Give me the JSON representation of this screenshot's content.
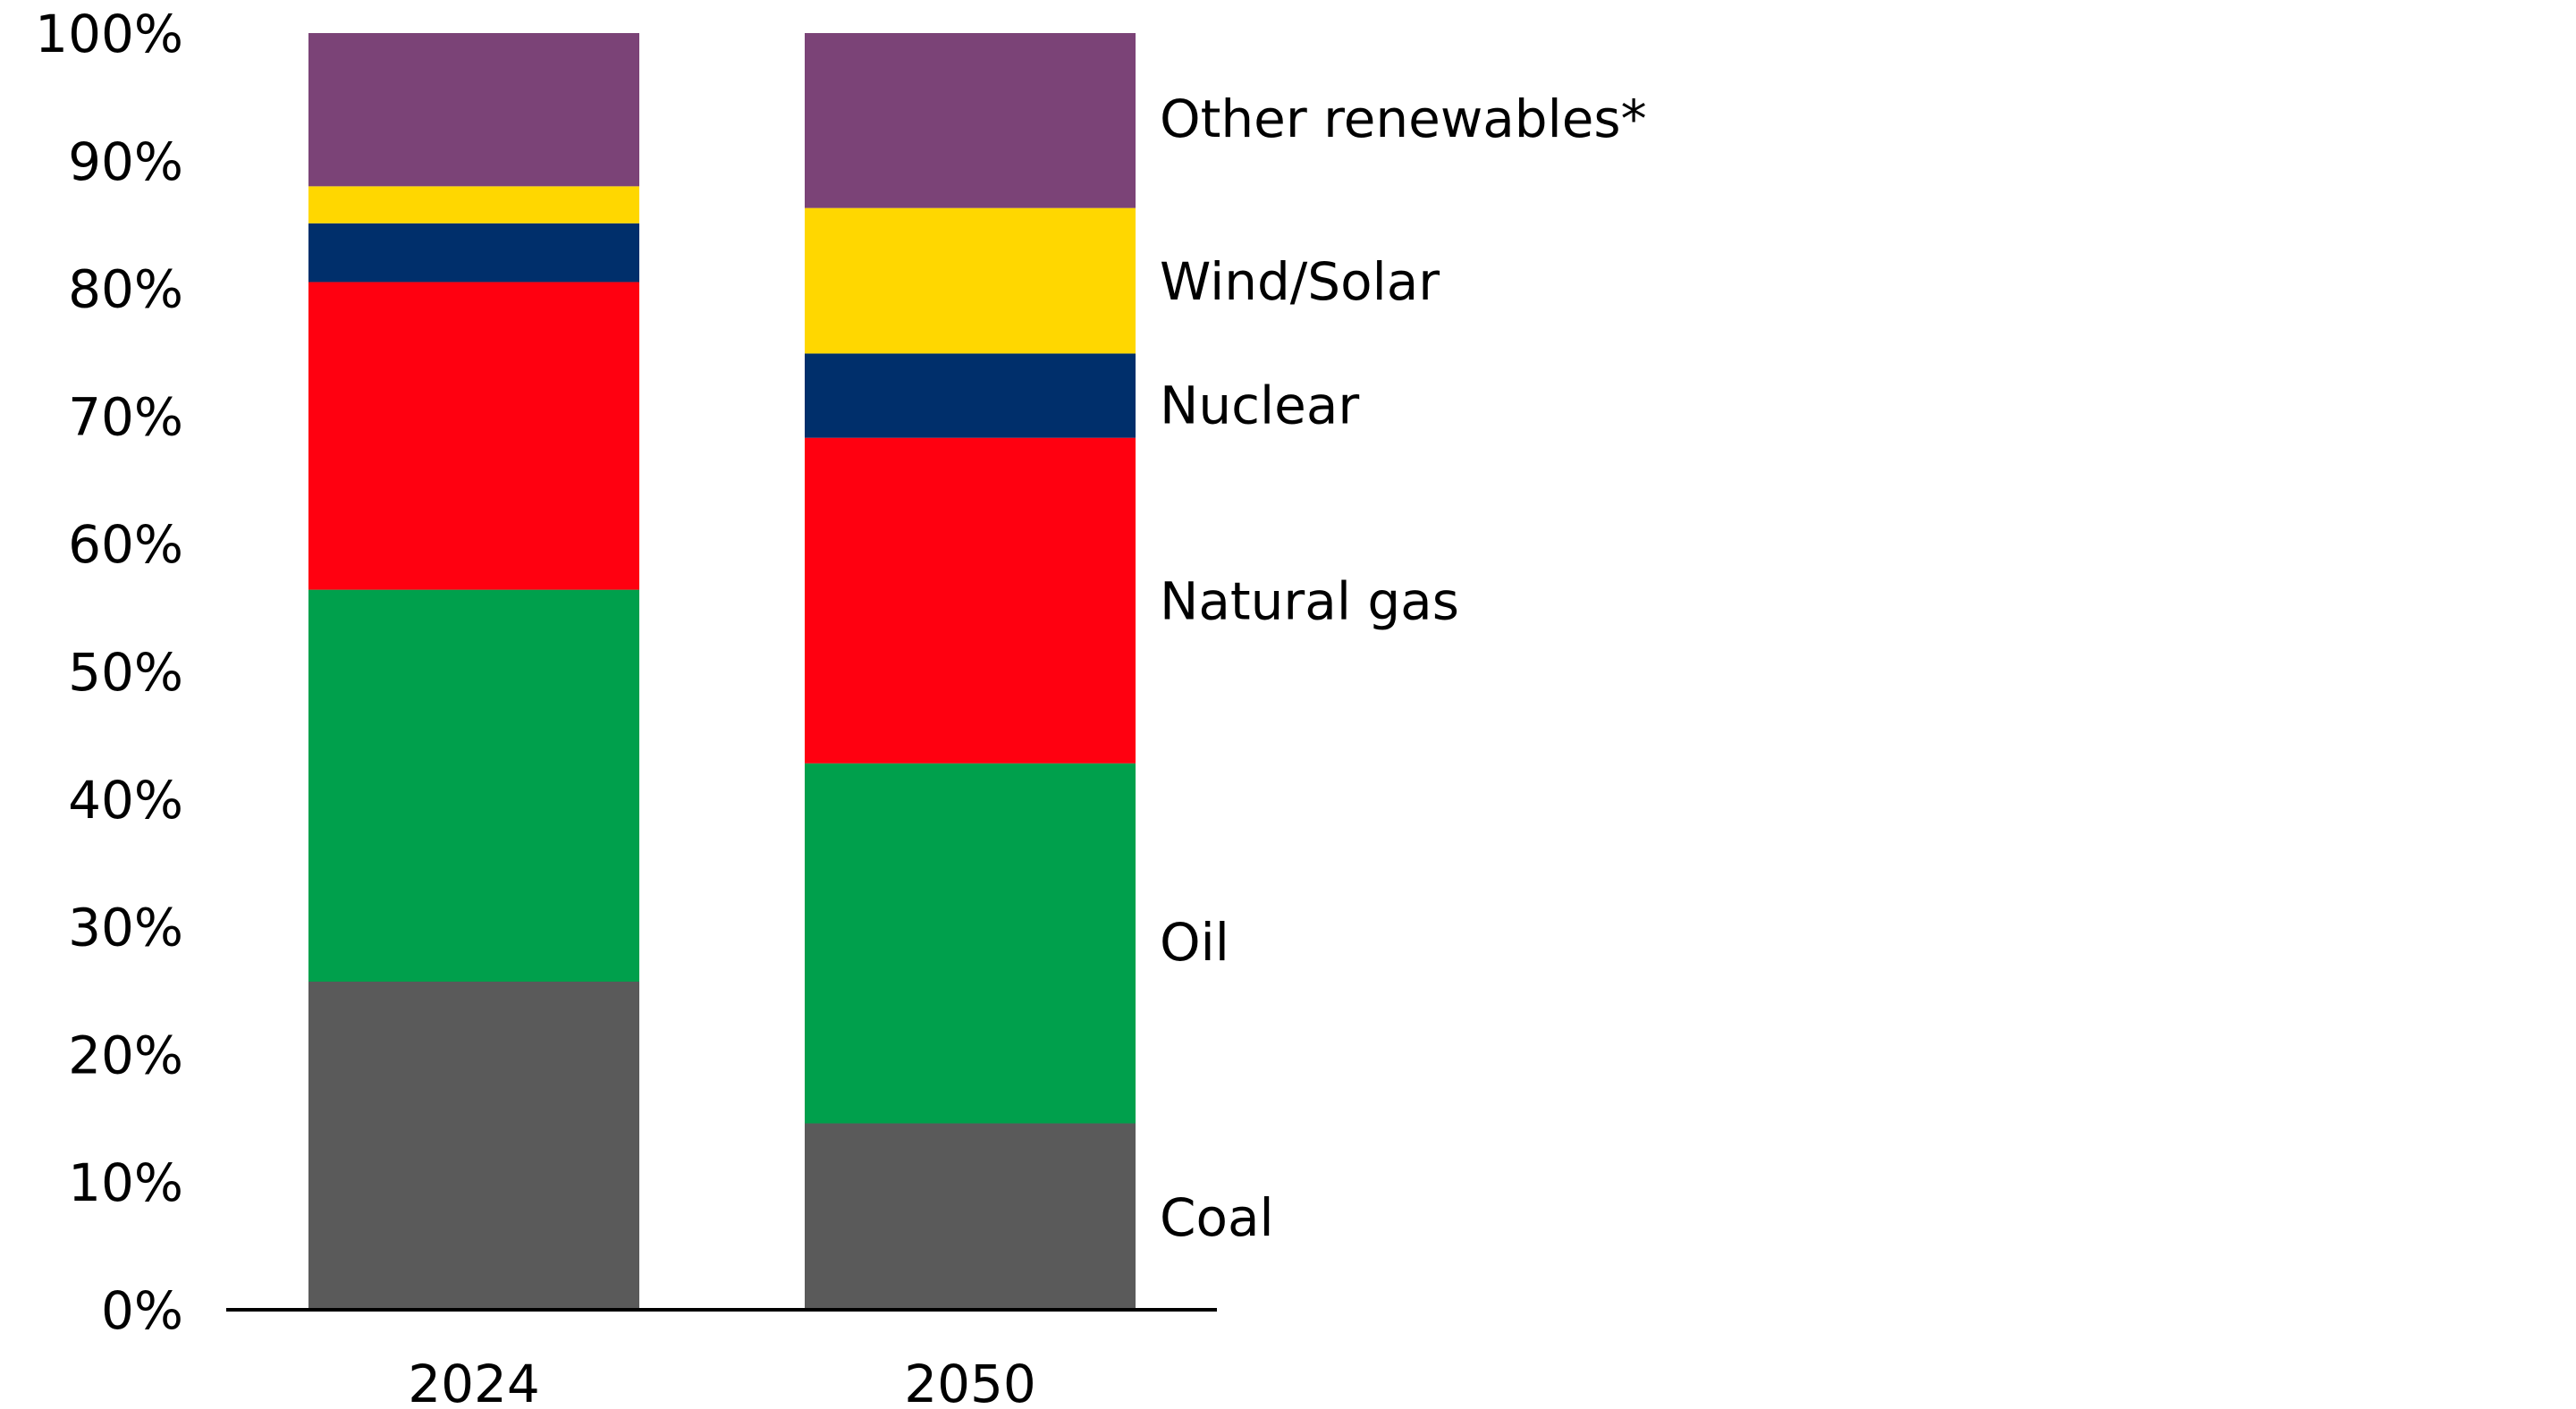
{
  "chart_data": {
    "type": "bar",
    "stacked": true,
    "categories": [
      "2024",
      "2050"
    ],
    "ylim": [
      0,
      100
    ],
    "yticks": [
      "0%",
      "10%",
      "20%",
      "30%",
      "40%",
      "50%",
      "60%",
      "70%",
      "80%",
      "90%",
      "100%"
    ],
    "grid": false,
    "legend": "direct labels to the right of the 2050 bar",
    "series": [
      {
        "name": "Coal",
        "color": "#5a5a5a",
        "values": [
          25.7,
          14.6
        ]
      },
      {
        "name": "Oil",
        "color": "#00a04c",
        "values": [
          30.7,
          28.2
        ]
      },
      {
        "name": "Natural gas",
        "color": "#ff0010",
        "values": [
          24.1,
          25.5
        ]
      },
      {
        "name": "Nuclear",
        "color": "#002f6b",
        "values": [
          4.6,
          6.6
        ]
      },
      {
        "name": "Wind/Solar",
        "color": "#ffd700",
        "values": [
          2.9,
          11.4
        ]
      },
      {
        "name": "Other renewables*",
        "color": "#7b4377",
        "values": [
          12.0,
          13.7
        ]
      }
    ]
  }
}
